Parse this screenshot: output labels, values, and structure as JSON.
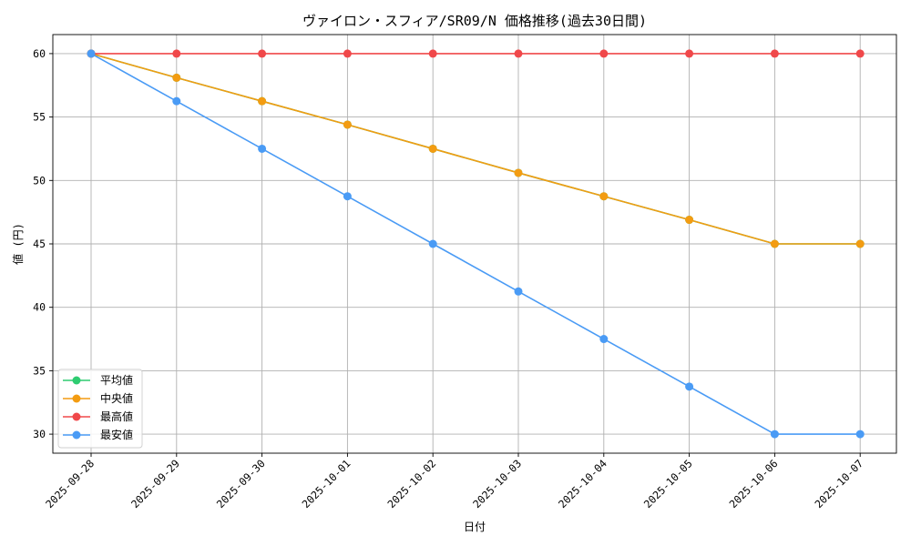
{
  "chart_data": {
    "type": "line",
    "title": "ヴァイロン・スフィア/SR09/N 価格推移(過去30日間)",
    "xlabel": "日付",
    "ylabel": "値 (円)",
    "x": [
      "2025-09-28",
      "2025-09-29",
      "2025-09-30",
      "2025-10-01",
      "2025-10-02",
      "2025-10-03",
      "2025-10-04",
      "2025-10-05",
      "2025-10-06",
      "2025-10-07"
    ],
    "ylim": [
      28.5,
      61.5
    ],
    "yticks": [
      30,
      35,
      40,
      45,
      50,
      55,
      60
    ],
    "grid": true,
    "legend_position": "bottom-left",
    "series": [
      {
        "name": "平均値",
        "color": "#2ecc71",
        "values": [
          60,
          58.1,
          56.25,
          54.4,
          52.5,
          50.6,
          48.75,
          46.9,
          45,
          45
        ]
      },
      {
        "name": "中央値",
        "color": "#f39c12",
        "values": [
          60,
          58.1,
          56.25,
          54.4,
          52.5,
          50.6,
          48.75,
          46.9,
          45,
          45
        ]
      },
      {
        "name": "最高値",
        "color": "#f0484a",
        "values": [
          60,
          60,
          60,
          60,
          60,
          60,
          60,
          60,
          60,
          60
        ]
      },
      {
        "name": "最安値",
        "color": "#4a9bf5",
        "values": [
          60,
          56.25,
          52.5,
          48.75,
          45,
          41.25,
          37.5,
          33.75,
          30,
          30
        ]
      }
    ]
  }
}
